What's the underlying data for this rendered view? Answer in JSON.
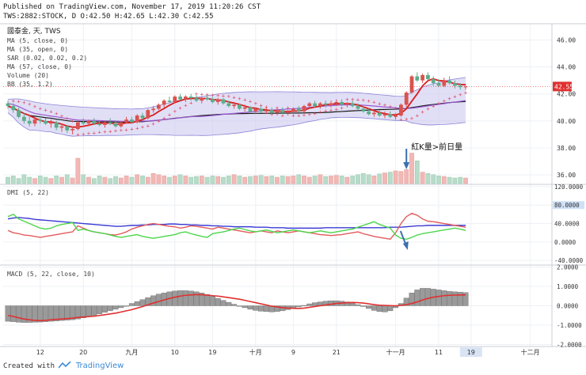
{
  "header": {
    "published": "Published on TradingView.com, November 17, 2019 11:20:26 CST",
    "symbol_line": "TWS:2882:STOCK, D O:42.50 H:42.65 L:42.30 C:42.55"
  },
  "footer": {
    "created_with": "Created with",
    "brand": "TradingView"
  },
  "colors": {
    "up": "#d9534f",
    "down": "#5cad8a",
    "ma5": "#d91c1c",
    "ma35": "#9b59d0",
    "ma57": "#1a1a1a",
    "sar": "#e0405a",
    "bb_fill": "#c9c4ee",
    "bb_line": "#8a82d6",
    "vol_up": "#f2b8b5",
    "vol_down": "#b7dcc9",
    "dmi_plus": "#e25b5b",
    "dmi_minus": "#4bd64b",
    "adx": "#3b3bd6",
    "macd_line": "#e03030",
    "macd_hist": "#8a8a8a",
    "grid": "#eef0f4",
    "price_tag": "#e03030",
    "annotation_arrow": "#3c6fb0"
  },
  "chart_data": [
    {
      "type": "candlestick",
      "title": "國泰金, 天, TWS",
      "legend": [
        "MA (5, close, 0)",
        "MA (35, open, 0)",
        "SAR (0.02, 0.02, 0.2)",
        "MA (57, close, 0)",
        "Volume (20)",
        "BB (35, 1.2)"
      ],
      "y_ticks": [
        "46.00",
        "44.00",
        "42.00",
        "40.00",
        "38.00",
        "36.00"
      ],
      "ylim": [
        35.3,
        47.2
      ],
      "last_price_label": "42.55",
      "last_price": 42.55,
      "x_ticks": [
        {
          "label": "12",
          "i": 6
        },
        {
          "label": "20",
          "i": 14
        },
        {
          "label": "九月",
          "i": 23
        },
        {
          "label": "10",
          "i": 31
        },
        {
          "label": "19",
          "i": 38
        },
        {
          "label": "十月",
          "i": 46
        },
        {
          "label": "9",
          "i": 53
        },
        {
          "label": "21",
          "i": 61
        },
        {
          "label": "十一月",
          "i": 72
        },
        {
          "label": "11",
          "i": 80
        },
        {
          "label": "19",
          "i": 86
        },
        {
          "label": "十二月",
          "i": 97
        }
      ],
      "x_highlight_tick": "19",
      "annotation": "紅K量>前日量",
      "annotation_index": 74,
      "ohlc": [
        [
          41.3,
          41.5,
          40.9,
          41.1
        ],
        [
          41.1,
          41.3,
          40.6,
          40.8
        ],
        [
          40.8,
          41.0,
          40.2,
          40.3
        ],
        [
          40.3,
          40.6,
          39.8,
          40.0
        ],
        [
          40.0,
          40.4,
          39.6,
          39.8
        ],
        [
          39.8,
          40.3,
          39.6,
          40.1
        ],
        [
          40.1,
          40.4,
          39.8,
          40.0
        ],
        [
          40.0,
          40.2,
          39.7,
          39.8
        ],
        [
          39.8,
          40.1,
          39.5,
          39.9
        ],
        [
          39.9,
          40.0,
          39.3,
          39.5
        ],
        [
          39.5,
          39.8,
          39.2,
          39.6
        ],
        [
          39.6,
          39.7,
          39.1,
          39.3
        ],
        [
          39.3,
          39.6,
          39.0,
          39.4
        ],
        [
          39.4,
          40.0,
          39.3,
          39.9
        ],
        [
          39.9,
          40.2,
          39.7,
          39.8
        ],
        [
          39.8,
          40.1,
          39.6,
          40.0
        ],
        [
          40.0,
          40.2,
          39.7,
          39.8
        ],
        [
          39.8,
          40.0,
          39.6,
          39.7
        ],
        [
          39.7,
          40.0,
          39.5,
          39.9
        ],
        [
          39.9,
          40.2,
          39.7,
          39.8
        ],
        [
          39.8,
          40.0,
          39.5,
          39.6
        ],
        [
          39.6,
          40.0,
          39.5,
          39.9
        ],
        [
          39.9,
          40.3,
          39.8,
          40.1
        ],
        [
          40.1,
          40.3,
          39.8,
          39.9
        ],
        [
          39.9,
          40.5,
          39.8,
          40.4
        ],
        [
          40.4,
          40.6,
          40.1,
          40.2
        ],
        [
          40.2,
          40.9,
          40.1,
          40.8
        ],
        [
          40.8,
          41.1,
          40.6,
          40.9
        ],
        [
          40.9,
          41.3,
          40.8,
          41.2
        ],
        [
          41.2,
          41.6,
          41.0,
          41.5
        ],
        [
          41.5,
          41.8,
          41.3,
          41.4
        ],
        [
          41.4,
          41.9,
          41.3,
          41.8
        ],
        [
          41.8,
          42.0,
          41.5,
          41.6
        ],
        [
          41.6,
          41.9,
          41.4,
          41.8
        ],
        [
          41.8,
          42.0,
          41.5,
          41.7
        ],
        [
          41.7,
          41.9,
          41.4,
          41.5
        ],
        [
          41.5,
          41.8,
          41.3,
          41.7
        ],
        [
          41.7,
          41.9,
          41.5,
          41.6
        ],
        [
          41.6,
          41.8,
          41.3,
          41.4
        ],
        [
          41.4,
          41.7,
          41.2,
          41.6
        ],
        [
          41.6,
          41.7,
          41.2,
          41.3
        ],
        [
          41.3,
          41.5,
          41.0,
          41.1
        ],
        [
          41.1,
          41.4,
          40.9,
          41.2
        ],
        [
          41.2,
          41.3,
          40.8,
          40.9
        ],
        [
          40.9,
          41.2,
          40.7,
          41.0
        ],
        [
          41.0,
          41.1,
          40.6,
          40.7
        ],
        [
          40.7,
          41.0,
          40.5,
          40.9
        ],
        [
          40.9,
          41.1,
          40.6,
          40.7
        ],
        [
          40.7,
          41.0,
          40.5,
          40.8
        ],
        [
          40.8,
          41.0,
          40.5,
          40.6
        ],
        [
          40.6,
          40.9,
          40.4,
          40.8
        ],
        [
          40.8,
          41.0,
          40.5,
          40.6
        ],
        [
          40.6,
          40.8,
          40.4,
          40.7
        ],
        [
          40.7,
          41.0,
          40.5,
          40.9
        ],
        [
          40.9,
          41.1,
          40.6,
          40.7
        ],
        [
          40.7,
          41.2,
          40.6,
          41.1
        ],
        [
          41.1,
          41.4,
          40.9,
          41.3
        ],
        [
          41.3,
          41.5,
          41.0,
          41.1
        ],
        [
          41.1,
          41.4,
          40.9,
          41.3
        ],
        [
          41.3,
          41.5,
          41.0,
          41.2
        ],
        [
          41.2,
          41.5,
          41.0,
          41.3
        ],
        [
          41.3,
          41.6,
          41.1,
          41.4
        ],
        [
          41.4,
          41.6,
          41.1,
          41.2
        ],
        [
          41.2,
          41.4,
          41.0,
          41.3
        ],
        [
          41.3,
          41.5,
          41.0,
          41.1
        ],
        [
          41.1,
          41.3,
          40.8,
          40.9
        ],
        [
          40.9,
          41.1,
          40.6,
          40.7
        ],
        [
          40.7,
          40.9,
          40.4,
          40.5
        ],
        [
          40.5,
          40.8,
          40.3,
          40.6
        ],
        [
          40.6,
          40.8,
          40.3,
          40.4
        ],
        [
          40.4,
          40.7,
          40.2,
          40.5
        ],
        [
          40.5,
          40.7,
          40.2,
          40.3
        ],
        [
          40.3,
          40.6,
          40.1,
          40.4
        ],
        [
          40.4,
          41.3,
          40.3,
          41.2
        ],
        [
          41.2,
          42.2,
          41.0,
          42.1
        ],
        [
          42.1,
          43.4,
          42.0,
          43.3
        ],
        [
          43.3,
          43.6,
          42.9,
          43.0
        ],
        [
          43.0,
          43.5,
          42.8,
          43.4
        ],
        [
          43.4,
          43.6,
          43.0,
          43.1
        ],
        [
          43.1,
          43.3,
          42.6,
          42.8
        ],
        [
          42.8,
          43.1,
          42.5,
          42.6
        ],
        [
          42.6,
          43.2,
          42.5,
          43.0
        ],
        [
          43.0,
          43.3,
          42.7,
          42.8
        ],
        [
          42.8,
          43.0,
          42.4,
          42.6
        ],
        [
          42.6,
          42.8,
          42.3,
          42.5
        ],
        [
          42.5,
          42.65,
          42.3,
          42.55
        ]
      ],
      "volume": [
        0.25,
        0.3,
        0.2,
        0.35,
        0.25,
        0.2,
        0.3,
        0.25,
        0.2,
        0.3,
        0.25,
        0.35,
        0.22,
        1.0,
        0.35,
        0.25,
        0.2,
        0.3,
        0.25,
        0.2,
        0.28,
        0.22,
        0.3,
        0.25,
        0.35,
        0.3,
        0.25,
        0.4,
        0.35,
        0.3,
        0.25,
        0.3,
        0.35,
        0.3,
        0.25,
        0.28,
        0.3,
        0.25,
        0.3,
        0.28,
        0.25,
        0.3,
        0.35,
        0.3,
        0.25,
        0.28,
        0.3,
        0.32,
        0.28,
        0.3,
        0.25,
        0.3,
        0.28,
        0.3,
        0.35,
        0.3,
        0.25,
        0.3,
        0.35,
        0.28,
        0.3,
        0.32,
        0.3,
        0.25,
        0.3,
        0.35,
        0.4,
        0.35,
        0.3,
        0.38,
        0.42,
        0.45,
        0.5,
        0.48,
        0.55,
        1.2,
        0.9,
        0.45,
        0.4,
        0.35,
        0.3,
        0.28,
        0.25,
        0.22,
        0.25,
        0.22
      ]
    },
    {
      "type": "line",
      "title": "DMI (5, 22)",
      "y_ticks": [
        "120.0000",
        "80.0000",
        "40.0000",
        "0.0000",
        "-40.0000"
      ],
      "ylim": [
        -50,
        125
      ],
      "highlight_tick": "80.0000",
      "series": [
        {
          "color_key": "adx",
          "values": [
            50,
            52,
            53,
            52,
            51,
            49,
            48,
            47,
            46,
            45,
            44,
            43,
            42,
            41,
            40,
            39,
            38,
            37,
            36,
            35,
            34,
            34,
            35,
            36,
            36,
            37,
            37,
            38,
            38,
            38,
            39,
            39,
            38,
            38,
            37,
            37,
            36,
            36,
            35,
            35,
            34,
            34,
            33,
            33,
            33,
            33,
            32,
            32,
            32,
            31,
            31,
            31,
            30,
            30,
            30,
            30,
            30,
            30,
            30,
            31,
            31,
            31,
            31,
            31,
            31,
            31,
            31,
            31,
            31,
            31,
            31,
            32,
            32,
            32,
            33,
            34,
            35,
            35,
            36,
            36,
            36,
            36,
            36,
            36,
            36,
            36
          ]
        },
        {
          "color_key": "dmi_plus",
          "values": [
            25,
            20,
            18,
            15,
            14,
            12,
            10,
            12,
            14,
            16,
            18,
            20,
            22,
            35,
            30,
            25,
            22,
            20,
            18,
            16,
            15,
            18,
            22,
            28,
            32,
            35,
            38,
            40,
            38,
            36,
            34,
            33,
            30,
            32,
            35,
            34,
            32,
            30,
            28,
            32,
            30,
            28,
            26,
            24,
            22,
            20,
            22,
            24,
            22,
            20,
            24,
            22,
            20,
            22,
            24,
            22,
            20,
            18,
            16,
            15,
            14,
            15,
            16,
            18,
            20,
            22,
            18,
            15,
            12,
            10,
            8,
            6,
            20,
            40,
            55,
            62,
            58,
            50,
            45,
            44,
            42,
            40,
            38,
            36,
            34,
            32
          ]
        },
        {
          "color_key": "dmi_minus",
          "values": [
            55,
            60,
            50,
            45,
            40,
            35,
            30,
            28,
            30,
            35,
            38,
            40,
            42,
            25,
            28,
            25,
            22,
            20,
            18,
            15,
            12,
            10,
            12,
            14,
            16,
            12,
            10,
            8,
            10,
            12,
            14,
            16,
            20,
            22,
            18,
            15,
            12,
            10,
            18,
            20,
            22,
            25,
            28,
            30,
            27,
            24,
            22,
            24,
            26,
            23,
            20,
            22,
            24,
            26,
            24,
            22,
            20,
            22,
            24,
            22,
            20,
            22,
            24,
            26,
            28,
            32,
            36,
            40,
            44,
            38,
            34,
            30,
            15,
            8,
            6,
            10,
            15,
            18,
            20,
            22,
            24,
            26,
            28,
            30,
            28,
            25
          ]
        }
      ]
    },
    {
      "type": "bar_line",
      "title": "MACD (5, 22, close, 10)",
      "y_ticks": [
        "2.0000",
        "1.0000",
        "0.0000",
        "-1.0000",
        "-2.0000"
      ],
      "ylim": [
        -2.1,
        2.1
      ],
      "line_color_key": "macd_line",
      "hist_color_key": "macd_hist",
      "macd": [
        -0.5,
        -0.55,
        -0.62,
        -0.68,
        -0.72,
        -0.75,
        -0.76,
        -0.75,
        -0.72,
        -0.7,
        -0.68,
        -0.66,
        -0.64,
        -0.6,
        -0.58,
        -0.56,
        -0.54,
        -0.5,
        -0.46,
        -0.42,
        -0.38,
        -0.32,
        -0.26,
        -0.2,
        -0.12,
        -0.04,
        0.05,
        0.14,
        0.22,
        0.3,
        0.38,
        0.44,
        0.5,
        0.54,
        0.56,
        0.58,
        0.57,
        0.55,
        0.52,
        0.5,
        0.46,
        0.42,
        0.38,
        0.34,
        0.28,
        0.22,
        0.16,
        0.1,
        0.04,
        -0.02,
        -0.06,
        -0.1,
        -0.12,
        -0.13,
        -0.14,
        -0.12,
        -0.08,
        -0.04,
        0.0,
        0.04,
        0.08,
        0.12,
        0.14,
        0.16,
        0.17,
        0.16,
        0.14,
        0.1,
        0.06,
        0.03,
        0.02,
        0.01,
        0.0,
        0.02,
        0.06,
        0.12,
        0.2,
        0.3,
        0.38,
        0.44,
        0.48,
        0.52,
        0.54,
        0.55,
        0.56,
        0.56
      ],
      "histogram": [
        -0.8,
        -0.82,
        -0.85,
        -0.86,
        -0.86,
        -0.85,
        -0.84,
        -0.82,
        -0.8,
        -0.78,
        -0.76,
        -0.74,
        -0.72,
        -0.68,
        -0.62,
        -0.56,
        -0.5,
        -0.42,
        -0.34,
        -0.26,
        -0.18,
        -0.1,
        0.0,
        0.12,
        0.22,
        0.32,
        0.42,
        0.52,
        0.6,
        0.66,
        0.72,
        0.76,
        0.78,
        0.78,
        0.76,
        0.72,
        0.66,
        0.58,
        0.48,
        0.38,
        0.28,
        0.18,
        0.08,
        -0.02,
        -0.1,
        -0.18,
        -0.24,
        -0.28,
        -0.3,
        -0.32,
        -0.3,
        -0.26,
        -0.2,
        -0.14,
        -0.06,
        0.02,
        0.1,
        0.16,
        0.2,
        0.24,
        0.26,
        0.26,
        0.24,
        0.2,
        0.14,
        0.06,
        -0.04,
        -0.14,
        -0.24,
        -0.3,
        -0.32,
        -0.26,
        -0.1,
        0.12,
        0.4,
        0.66,
        0.82,
        0.9,
        0.9,
        0.86,
        0.82,
        0.78,
        0.74,
        0.72,
        0.7,
        0.68
      ]
    }
  ]
}
